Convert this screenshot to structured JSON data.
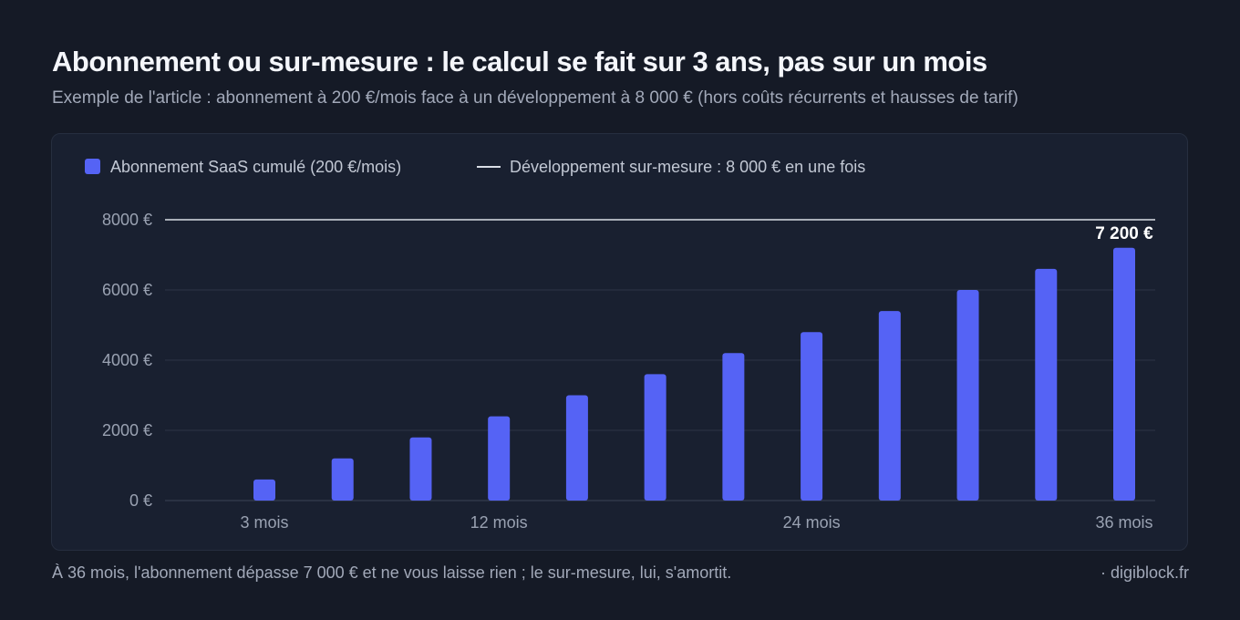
{
  "header": {
    "title": "Abonnement ou sur-mesure : le calcul se fait sur 3 ans, pas sur un mois",
    "subtitle": "Exemple de l'article : abonnement à 200 €/mois face à un développement à 8 000 € (hors coûts récurrents et hausses de tarif)"
  },
  "footer": {
    "note": "À 36 mois, l'abonnement dépasse 7 000 € et ne vous laisse rien ; le sur-mesure, lui, s'amortit.",
    "brand": "· digiblock.fr"
  },
  "colors": {
    "bar": "#5563f5",
    "line": "#d9dde6",
    "grid": "#2d3546"
  },
  "chart_data": {
    "type": "bar",
    "title": "",
    "xlabel": "",
    "ylabel": "",
    "ylim": [
      0,
      8000
    ],
    "grid": true,
    "legend_position": "top-left",
    "legend": [
      {
        "label": "Abonnement SaaS cumulé (200 €/mois)",
        "marker": "square"
      },
      {
        "label": "Développement sur-mesure : 8 000 € en une fois",
        "marker": "line"
      }
    ],
    "y_ticks": [
      {
        "value": 0,
        "label": "0 €"
      },
      {
        "value": 2000,
        "label": "2000 €"
      },
      {
        "value": 4000,
        "label": "4000 €"
      },
      {
        "value": 6000,
        "label": "6000 €"
      },
      {
        "value": 8000,
        "label": "8000 €"
      }
    ],
    "x_ticks": [
      {
        "value": 3,
        "label": "3 mois"
      },
      {
        "value": 12,
        "label": "12 mois"
      },
      {
        "value": 24,
        "label": "24 mois"
      },
      {
        "value": 36,
        "label": "36 mois"
      }
    ],
    "xlim": [
      0,
      37
    ],
    "series": [
      {
        "name": "Abonnement SaaS cumulé (200 €/mois)",
        "type": "bar",
        "x": [
          3,
          6,
          9,
          12,
          15,
          18,
          21,
          24,
          27,
          30,
          33,
          36
        ],
        "values": [
          600,
          1200,
          1800,
          2400,
          3000,
          3600,
          4200,
          4800,
          5400,
          6000,
          6600,
          7200
        ]
      },
      {
        "name": "Développement sur-mesure : 8 000 € en une fois",
        "type": "line",
        "value": 8000
      }
    ],
    "annotations": [
      {
        "x": 36,
        "value": 7200,
        "label": "7 200 €"
      }
    ]
  }
}
